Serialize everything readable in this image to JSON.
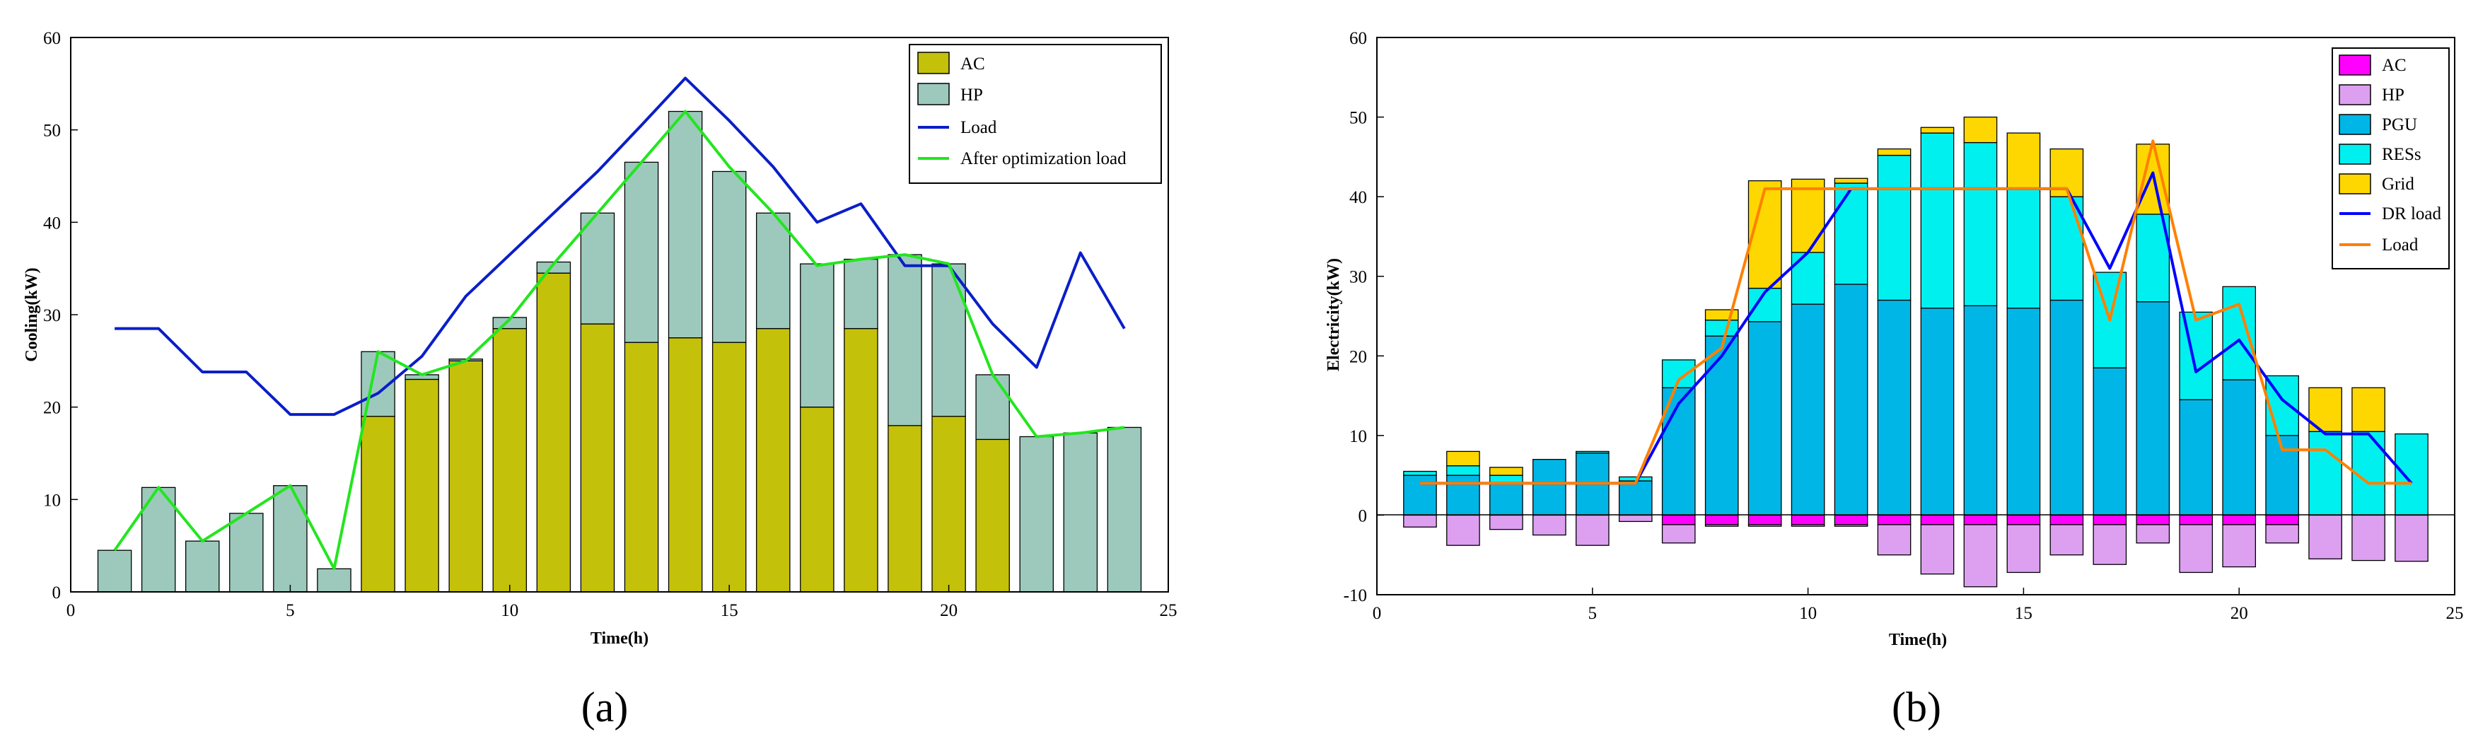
{
  "chart_data": [
    {
      "type": "bar",
      "panel_label": "(a)",
      "xlabel": "Time(h)",
      "ylabel": "Cooling(kW)",
      "xlim": [
        0,
        25
      ],
      "ylim": [
        0,
        60
      ],
      "xticks": [
        "0",
        "5",
        "10",
        "15",
        "20",
        "25"
      ],
      "yticks": [
        "0",
        "10",
        "20",
        "30",
        "40",
        "50",
        "60"
      ],
      "legend_position": "top-right",
      "x": [
        1,
        2,
        3,
        4,
        5,
        6,
        7,
        8,
        9,
        10,
        11,
        12,
        13,
        14,
        15,
        16,
        17,
        18,
        19,
        20,
        21,
        22,
        23,
        24
      ],
      "stacked_series": [
        {
          "name": "AC",
          "color": "#c4c10a",
          "values": [
            0,
            0,
            0,
            0,
            0,
            0,
            19,
            23,
            25,
            28.5,
            34.5,
            29,
            27,
            27.5,
            27,
            28.5,
            20,
            28.5,
            18,
            19,
            16.5,
            0,
            0,
            0
          ]
        },
        {
          "name": "HP",
          "color": "#9dc9bd",
          "values": [
            4.5,
            11.3,
            5.5,
            8.5,
            11.5,
            2.5,
            7,
            0.5,
            0.2,
            1.2,
            1.2,
            12,
            19.5,
            24.5,
            18.5,
            12.5,
            15.5,
            7.5,
            18.5,
            16.5,
            7,
            16.8,
            17.2,
            17.8
          ]
        }
      ],
      "line_series": [
        {
          "name": "Load",
          "color": "#0a1ec8",
          "values": [
            28.5,
            28.5,
            23.8,
            23.8,
            19.2,
            19.2,
            21.5,
            25.5,
            32,
            36.5,
            41,
            45.5,
            50.5,
            55.6,
            51,
            46,
            40,
            42,
            35.3,
            35.3,
            29,
            24.3,
            36.7,
            28.5
          ]
        },
        {
          "name": "After optimization load",
          "color": "#22e61e",
          "values": [
            4.5,
            11.3,
            5.5,
            8.5,
            11.5,
            2.5,
            26,
            23.5,
            25,
            29.5,
            35.5,
            41,
            46.5,
            52,
            46,
            41,
            35.3,
            36,
            36.5,
            35.5,
            23.5,
            16.8,
            17.2,
            17.8
          ]
        }
      ]
    },
    {
      "type": "bar",
      "panel_label": "(b)",
      "xlabel": "Time(h)",
      "ylabel": "Electricity(kW)",
      "xlim": [
        0,
        25
      ],
      "ylim": [
        -10,
        60
      ],
      "xticks": [
        "0",
        "5",
        "10",
        "15",
        "20",
        "25"
      ],
      "yticks": [
        "-10",
        "0",
        "10",
        "20",
        "30",
        "40",
        "50",
        "60"
      ],
      "legend_position": "top-right",
      "x": [
        1,
        2,
        3,
        4,
        5,
        6,
        7,
        8,
        9,
        10,
        11,
        12,
        13,
        14,
        15,
        16,
        17,
        18,
        19,
        20,
        21,
        22,
        23,
        24
      ],
      "stacked_series": [
        {
          "name": "AC",
          "color": "#ff00ff",
          "values": [
            0,
            0,
            0,
            0,
            0,
            0,
            -1.2,
            -1.2,
            -1.2,
            -1.2,
            -1.2,
            -1.2,
            -1.2,
            -1.2,
            -1.2,
            -1.2,
            -1.2,
            -1.2,
            -1.2,
            -1.2,
            -1.2,
            0,
            0,
            0
          ]
        },
        {
          "name": "HP",
          "color": "#dda0f0",
          "values": [
            -1.5,
            -3.8,
            -1.8,
            -2.5,
            -3.8,
            -0.8,
            -2.3,
            -0.2,
            -0.2,
            -0.2,
            -0.2,
            -3.8,
            -6.2,
            -7.8,
            -6,
            -3.8,
            -5,
            -2.3,
            -6,
            -5.3,
            -2.3,
            -5.5,
            -5.7,
            -5.8
          ]
        },
        {
          "name": "PGU",
          "color": "#00b6e6",
          "values": [
            5,
            5,
            4,
            7,
            7.8,
            4.3,
            16,
            22.5,
            24.3,
            26.5,
            29,
            27,
            26,
            26.3,
            26,
            27,
            18.5,
            26.8,
            14.5,
            17,
            10,
            0,
            0,
            0
          ]
        },
        {
          "name": "RESs",
          "color": "#00f0f0",
          "values": [
            0.5,
            1.2,
            1,
            0,
            0.2,
            0.5,
            3.5,
            2,
            4.2,
            6.5,
            12.7,
            18.2,
            22,
            20.5,
            15,
            13,
            12,
            11,
            11,
            11.7,
            7.5,
            10.5,
            10.5,
            10.2
          ]
        },
        {
          "name": "Grid",
          "color": "#ffd700",
          "values": [
            0,
            1.8,
            1,
            0,
            0,
            0,
            0,
            1.3,
            13.5,
            9.2,
            0.6,
            0.8,
            0.7,
            3.2,
            7,
            6,
            0,
            8.8,
            0,
            0,
            0,
            5.5,
            5.5,
            0
          ]
        }
      ],
      "line_series": [
        {
          "name": "DR load",
          "color": "#0000ff",
          "values": [
            4,
            4,
            4,
            4,
            4,
            4,
            14,
            20,
            28,
            33,
            41,
            41,
            41,
            41,
            41,
            41,
            31,
            43,
            18,
            22,
            14.5,
            10.2,
            10.2,
            4
          ]
        },
        {
          "name": "Load",
          "color": "#ff8000",
          "values": [
            4,
            4,
            4,
            4,
            4,
            4,
            17,
            21,
            41,
            41,
            41,
            41,
            41,
            41,
            41,
            41,
            24.5,
            47,
            24.5,
            26.5,
            8.2,
            8.2,
            4,
            4
          ]
        }
      ]
    }
  ]
}
